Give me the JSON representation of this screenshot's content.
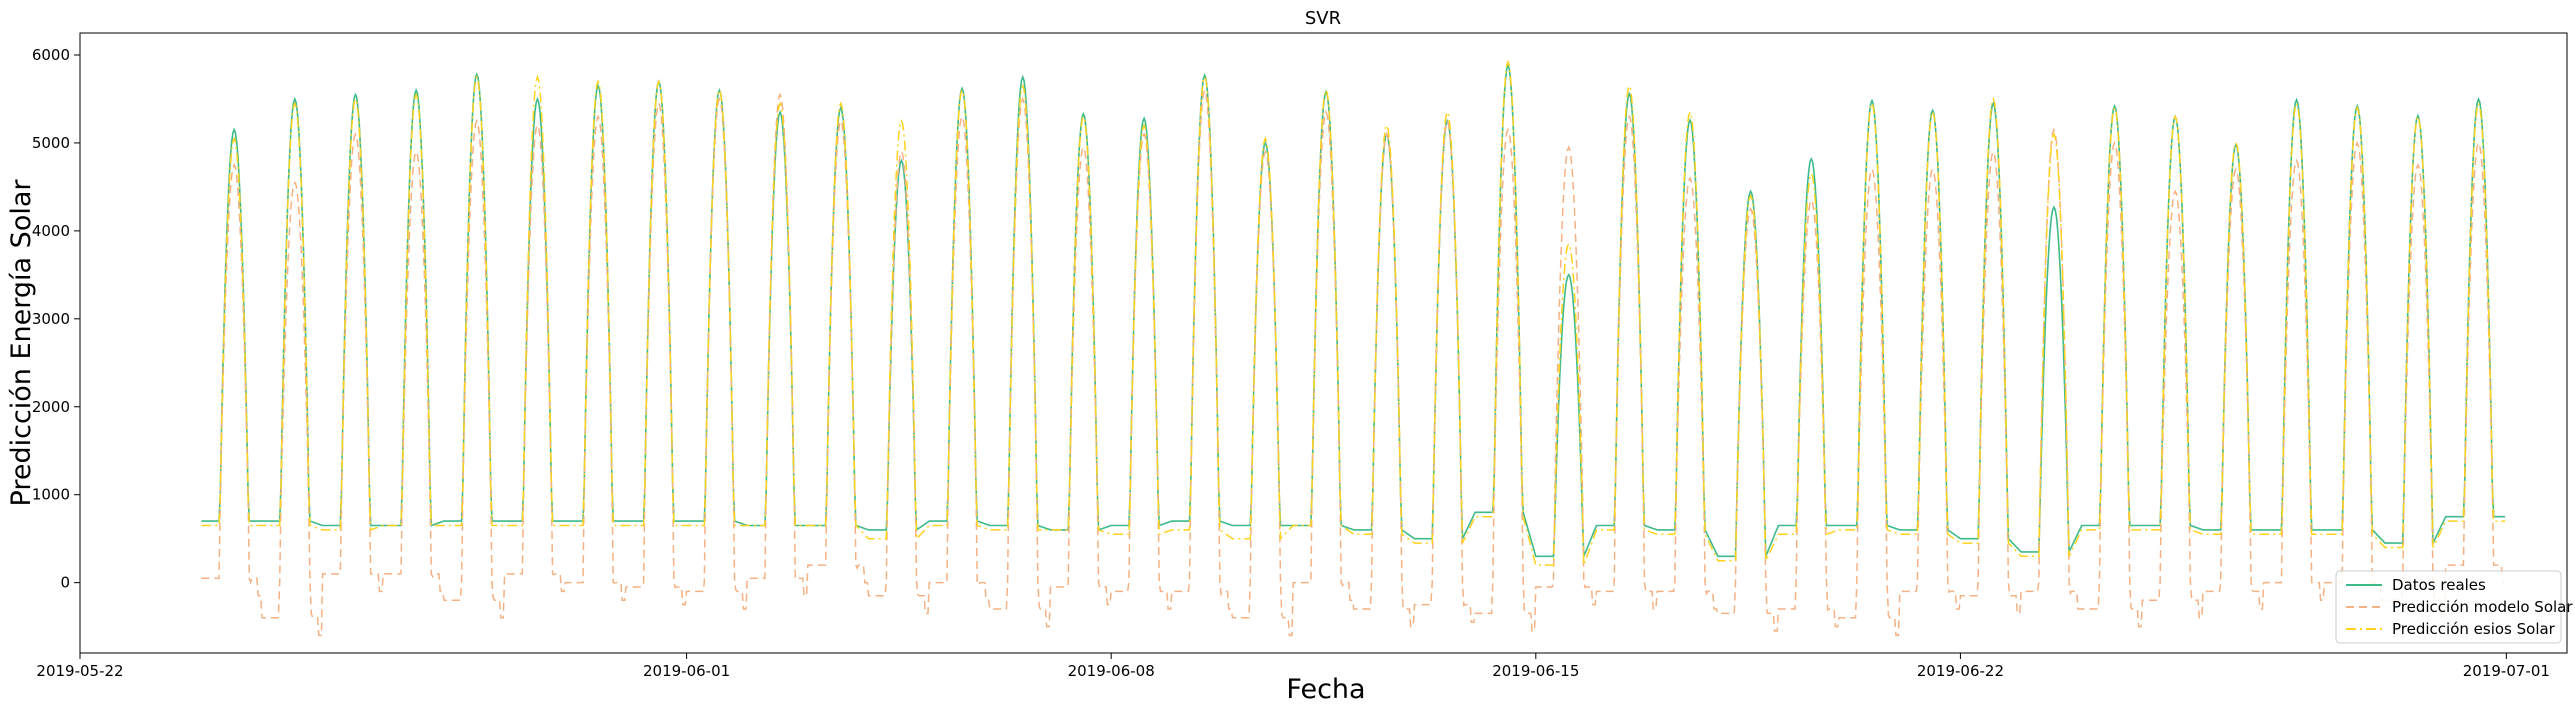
{
  "chart_data": {
    "type": "line",
    "title": "SVR",
    "xlabel": "Fecha",
    "ylabel": "Predicción Energía Solar",
    "xlim": [
      "2019-05-22",
      "2019-07-02"
    ],
    "ylim": [
      -800,
      6250
    ],
    "x_ticks": [
      "2019-05-22",
      "2019-06-01",
      "2019-06-08",
      "2019-06-15",
      "2019-06-22",
      "2019-07-01"
    ],
    "y_ticks": [
      0,
      1000,
      2000,
      3000,
      4000,
      5000,
      6000
    ],
    "legend_position": "lower-right",
    "x": [
      "2019-05-24",
      "2019-05-25",
      "2019-05-26",
      "2019-05-27",
      "2019-05-28",
      "2019-05-29",
      "2019-05-30",
      "2019-05-31",
      "2019-06-01",
      "2019-06-02",
      "2019-06-03",
      "2019-06-04",
      "2019-06-05",
      "2019-06-06",
      "2019-06-07",
      "2019-06-08",
      "2019-06-09",
      "2019-06-10",
      "2019-06-11",
      "2019-06-12",
      "2019-06-13",
      "2019-06-14",
      "2019-06-15",
      "2019-06-16",
      "2019-06-17",
      "2019-06-18",
      "2019-06-19",
      "2019-06-20",
      "2019-06-21",
      "2019-06-22",
      "2019-06-23",
      "2019-06-24",
      "2019-06-25",
      "2019-06-26",
      "2019-06-27",
      "2019-06-28",
      "2019-06-29",
      "2019-06-30"
    ],
    "series": [
      {
        "name": "Datos reales",
        "color": "#3dbb8a",
        "style": "solid",
        "daily_peak": [
          5150,
          5500,
          5550,
          5600,
          5780,
          5500,
          5650,
          5700,
          5600,
          5350,
          5400,
          4800,
          5620,
          5750,
          5330,
          5280,
          5770,
          5000,
          5580,
          5100,
          5250,
          5880,
          3500,
          5560,
          5260,
          4450,
          4820,
          5480,
          5370,
          5450,
          4270,
          5420,
          5300,
          4980,
          5490,
          5420,
          5310,
          5500
        ],
        "night_base": [
          700,
          700,
          650,
          650,
          700,
          700,
          700,
          700,
          700,
          650,
          650,
          600,
          700,
          650,
          600,
          650,
          700,
          650,
          650,
          600,
          500,
          800,
          300,
          650,
          600,
          300,
          650,
          650,
          600,
          500,
          350,
          650,
          650,
          600,
          600,
          600,
          450,
          750
        ]
      },
      {
        "name": "Predicción modelo Solar",
        "color": "#f4b183",
        "style": "dashed",
        "daily_peak": [
          4750,
          4550,
          5100,
          4900,
          5250,
          5200,
          5300,
          5450,
          5500,
          5550,
          5250,
          4900,
          5300,
          5500,
          4950,
          5100,
          5600,
          4900,
          5350,
          5100,
          5250,
          5150,
          4950,
          5300,
          4600,
          4250,
          4350,
          4700,
          4700,
          4900,
          5150,
          5000,
          4450,
          4700,
          4800,
          5000,
          4750,
          5000
        ],
        "night_base": [
          50,
          -400,
          100,
          100,
          -200,
          100,
          0,
          -50,
          -100,
          50,
          200,
          -150,
          0,
          -300,
          -50,
          -100,
          -100,
          -400,
          0,
          -300,
          -250,
          -350,
          -50,
          -100,
          -100,
          -350,
          -300,
          -400,
          -100,
          -150,
          -100,
          -300,
          -200,
          -100,
          0,
          0,
          -200,
          200
        ]
      },
      {
        "name": "Predicción esios Solar",
        "color": "#ffd21e",
        "style": "dashdot",
        "daily_peak": [
          5050,
          5450,
          5500,
          5550,
          5750,
          5750,
          5700,
          5700,
          5600,
          5450,
          5450,
          5250,
          5600,
          5650,
          5300,
          5200,
          5750,
          5050,
          5600,
          5200,
          5350,
          5920,
          3850,
          5650,
          5350,
          4400,
          4650,
          5450,
          5350,
          5500,
          5100,
          5400,
          5300,
          5000,
          5450,
          5400,
          5300,
          5450
        ],
        "night_base": [
          650,
          650,
          600,
          650,
          650,
          650,
          650,
          650,
          650,
          650,
          650,
          500,
          650,
          600,
          600,
          550,
          600,
          500,
          650,
          550,
          450,
          750,
          200,
          600,
          550,
          250,
          550,
          600,
          550,
          450,
          300,
          600,
          600,
          550,
          550,
          550,
          400,
          700
        ]
      }
    ]
  }
}
